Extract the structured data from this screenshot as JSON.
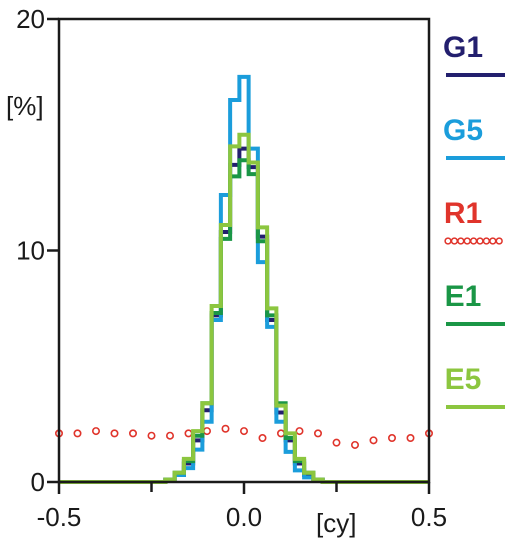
{
  "chart_data": {
    "type": "line",
    "xunit": "[cy]",
    "yunit": "[%]",
    "xlim": [
      -0.5,
      0.5
    ],
    "ylim": [
      0,
      20
    ],
    "xticks": [
      {
        "value": -0.5,
        "label": "-0.5"
      },
      {
        "value": 0.0,
        "label": "0.0"
      },
      {
        "value": 0.5,
        "label": "0.5"
      }
    ],
    "xminor": [
      -0.25,
      0.25
    ],
    "yticks": [
      {
        "value": 0,
        "label": "0"
      },
      {
        "value": 10,
        "label": "10"
      },
      {
        "value": 20,
        "label": "20"
      }
    ],
    "bin_width": 0.025,
    "series": [
      {
        "name": "G1",
        "color": "#231f6e",
        "style": "step",
        "bins": [
          {
            "x": -0.2,
            "y": 0.1
          },
          {
            "x": -0.175,
            "y": 0.3
          },
          {
            "x": -0.15,
            "y": 0.8
          },
          {
            "x": -0.125,
            "y": 1.8
          },
          {
            "x": -0.1,
            "y": 3.1
          },
          {
            "x": -0.075,
            "y": 7.2
          },
          {
            "x": -0.05,
            "y": 10.8
          },
          {
            "x": -0.025,
            "y": 13.7
          },
          {
            "x": 0.0,
            "y": 14.4
          },
          {
            "x": 0.025,
            "y": 13.6
          },
          {
            "x": 0.05,
            "y": 10.6
          },
          {
            "x": 0.075,
            "y": 7.0
          },
          {
            "x": 0.1,
            "y": 3.0
          },
          {
            "x": 0.125,
            "y": 1.8
          },
          {
            "x": 0.15,
            "y": 0.8
          },
          {
            "x": 0.175,
            "y": 0.3
          },
          {
            "x": 0.2,
            "y": 0.1
          }
        ]
      },
      {
        "name": "G5",
        "color": "#1b9ddb",
        "style": "step",
        "bins": [
          {
            "x": -0.2,
            "y": 0.1
          },
          {
            "x": -0.175,
            "y": 0.3
          },
          {
            "x": -0.15,
            "y": 0.6
          },
          {
            "x": -0.125,
            "y": 1.4
          },
          {
            "x": -0.1,
            "y": 2.6
          },
          {
            "x": -0.075,
            "y": 7.0
          },
          {
            "x": -0.05,
            "y": 12.4
          },
          {
            "x": -0.025,
            "y": 16.5
          },
          {
            "x": 0.0,
            "y": 17.5
          },
          {
            "x": 0.025,
            "y": 14.4
          },
          {
            "x": 0.05,
            "y": 9.5
          },
          {
            "x": 0.075,
            "y": 6.7
          },
          {
            "x": 0.1,
            "y": 2.6
          },
          {
            "x": 0.125,
            "y": 1.3
          },
          {
            "x": 0.15,
            "y": 0.5
          },
          {
            "x": 0.175,
            "y": 0.2
          },
          {
            "x": 0.2,
            "y": 0.1
          }
        ]
      },
      {
        "name": "R1",
        "color": "#e0342b",
        "style": "dotted",
        "points": [
          {
            "x": -0.5,
            "y": 2.1
          },
          {
            "x": -0.45,
            "y": 2.1
          },
          {
            "x": -0.4,
            "y": 2.2
          },
          {
            "x": -0.35,
            "y": 2.1
          },
          {
            "x": -0.3,
            "y": 2.1
          },
          {
            "x": -0.25,
            "y": 2.0
          },
          {
            "x": -0.2,
            "y": 2.0
          },
          {
            "x": -0.15,
            "y": 2.1
          },
          {
            "x": -0.1,
            "y": 2.2
          },
          {
            "x": -0.05,
            "y": 2.3
          },
          {
            "x": 0.0,
            "y": 2.2
          },
          {
            "x": 0.05,
            "y": 1.9
          },
          {
            "x": 0.1,
            "y": 2.1
          },
          {
            "x": 0.15,
            "y": 2.2
          },
          {
            "x": 0.2,
            "y": 2.1
          },
          {
            "x": 0.25,
            "y": 1.7
          },
          {
            "x": 0.3,
            "y": 1.6
          },
          {
            "x": 0.35,
            "y": 1.8
          },
          {
            "x": 0.4,
            "y": 1.9
          },
          {
            "x": 0.45,
            "y": 1.9
          },
          {
            "x": 0.5,
            "y": 2.1
          }
        ]
      },
      {
        "name": "E1",
        "color": "#1a9646",
        "style": "step",
        "bins": [
          {
            "x": -0.2,
            "y": 0.1
          },
          {
            "x": -0.175,
            "y": 0.4
          },
          {
            "x": -0.15,
            "y": 0.9
          },
          {
            "x": -0.125,
            "y": 2.0
          },
          {
            "x": -0.1,
            "y": 3.4
          },
          {
            "x": -0.075,
            "y": 7.3
          },
          {
            "x": -0.05,
            "y": 10.5
          },
          {
            "x": -0.025,
            "y": 13.2
          },
          {
            "x": 0.0,
            "y": 13.9
          },
          {
            "x": 0.025,
            "y": 13.3
          },
          {
            "x": 0.05,
            "y": 10.4
          },
          {
            "x": 0.075,
            "y": 7.2
          },
          {
            "x": 0.1,
            "y": 3.4
          },
          {
            "x": 0.125,
            "y": 1.9
          },
          {
            "x": 0.15,
            "y": 0.9
          },
          {
            "x": 0.175,
            "y": 0.4
          },
          {
            "x": 0.2,
            "y": 0.1
          }
        ]
      },
      {
        "name": "E5",
        "color": "#8cc63f",
        "style": "step",
        "bins": [
          {
            "x": -0.2,
            "y": 0.1
          },
          {
            "x": -0.175,
            "y": 0.4
          },
          {
            "x": -0.15,
            "y": 1.0
          },
          {
            "x": -0.125,
            "y": 2.2
          },
          {
            "x": -0.1,
            "y": 3.4
          },
          {
            "x": -0.075,
            "y": 7.6
          },
          {
            "x": -0.05,
            "y": 11.1
          },
          {
            "x": -0.025,
            "y": 14.5
          },
          {
            "x": 0.0,
            "y": 15.0
          },
          {
            "x": 0.025,
            "y": 13.8
          },
          {
            "x": 0.05,
            "y": 11.0
          },
          {
            "x": 0.075,
            "y": 7.5
          },
          {
            "x": 0.1,
            "y": 3.3
          },
          {
            "x": 0.125,
            "y": 2.1
          },
          {
            "x": 0.15,
            "y": 1.0
          },
          {
            "x": 0.175,
            "y": 0.4
          },
          {
            "x": 0.2,
            "y": 0.1
          }
        ]
      }
    ],
    "legend": {
      "placement": "right",
      "entries": [
        {
          "label": "G1",
          "color": "#231f6e",
          "marker": "line"
        },
        {
          "label": "G5",
          "color": "#1b9ddb",
          "marker": "line"
        },
        {
          "label": "R1",
          "color": "#e0342b",
          "marker": "dots"
        },
        {
          "label": "E1",
          "color": "#1a9646",
          "marker": "line"
        },
        {
          "label": "E5",
          "color": "#8cc63f",
          "marker": "line"
        }
      ]
    }
  }
}
